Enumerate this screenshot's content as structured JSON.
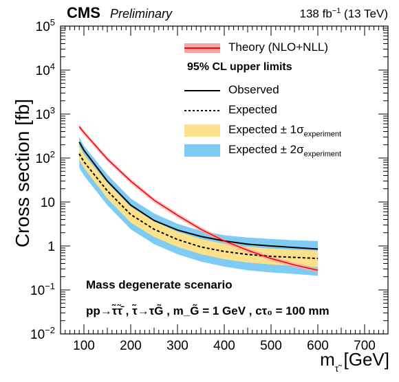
{
  "header": {
    "experiment": "CMS",
    "status": "Preliminary",
    "lumi_base": "138 fb",
    "lumi_exp": "−1",
    "lumi_tail": " (13 TeV)"
  },
  "axes": {
    "ylabel": "Cross section [fb]",
    "xlabel_main": "m",
    "xlabel_sub": "τ̃",
    "xlabel_unit": " [GeV]"
  },
  "legend": {
    "theory": "Theory (NLO+NLL)",
    "heading": "95% CL upper limits",
    "observed": "Observed",
    "expected": "Expected",
    "band1_main": "Expected ± 1σ",
    "band1_sub": "experiment",
    "band2_main": "Expected ± 2σ",
    "band2_sub": "experiment"
  },
  "annotations": {
    "scenario": "Mass degenerate scenario",
    "process": "pp→τ̃τ̃̄ ,  τ̃→τG̃ , m_G̃ = 1 GeV , cτ₀ = 100 mm"
  },
  "colors": {
    "theory": "#ff0000",
    "theory_band": "#f4a6a6",
    "band1": "#fde08a",
    "band2": "#7ecbf4",
    "lines": "#000000"
  },
  "chart_data": {
    "type": "line",
    "xlim": [
      50,
      750
    ],
    "ylim": [
      0.01,
      100000
    ],
    "yscale": "log",
    "x_ticks": [
      100,
      200,
      300,
      400,
      500,
      600,
      700
    ],
    "y_ticks": [
      {
        "v": 0.01,
        "m": "10",
        "e": "−2"
      },
      {
        "v": 0.1,
        "m": "10",
        "e": "−1"
      },
      {
        "v": 1,
        "m": "1",
        "e": ""
      },
      {
        "v": 10,
        "m": "10",
        "e": ""
      },
      {
        "v": 100,
        "m": "10",
        "e": "2"
      },
      {
        "v": 1000,
        "m": "10",
        "e": "3"
      },
      {
        "v": 10000,
        "m": "10",
        "e": "4"
      },
      {
        "v": 100000,
        "m": "10",
        "e": "5"
      }
    ],
    "x": [
      90,
      100,
      150,
      200,
      250,
      300,
      350,
      400,
      450,
      500,
      550,
      600
    ],
    "series": [
      {
        "name": "Observed",
        "values": [
          230,
          150,
          30,
          8.5,
          3.8,
          2.3,
          1.65,
          1.3,
          1.1,
          1.0,
          0.92,
          0.85
        ]
      },
      {
        "name": "Expected",
        "values": [
          125,
          82,
          18,
          5.2,
          2.4,
          1.4,
          0.95,
          0.75,
          0.64,
          0.58,
          0.55,
          0.52
        ]
      },
      {
        "name": "Theory (NLO+NLL)",
        "values": [
          520,
          380,
          95,
          30,
          11,
          5.0,
          2.4,
          1.3,
          0.8,
          0.52,
          0.37,
          0.28
        ]
      }
    ],
    "band_1sigma": {
      "lo": [
        90,
        60,
        12,
        3.4,
        1.6,
        0.95,
        0.65,
        0.5,
        0.42,
        0.38,
        0.35,
        0.33
      ],
      "hi": [
        190,
        120,
        27,
        7.8,
        3.6,
        2.1,
        1.45,
        1.12,
        0.96,
        0.87,
        0.82,
        0.78
      ]
    },
    "band_2sigma": {
      "lo": [
        60,
        40,
        8.5,
        2.4,
        1.1,
        0.65,
        0.44,
        0.34,
        0.28,
        0.25,
        0.23,
        0.21
      ],
      "hi": [
        300,
        190,
        42,
        12,
        5.5,
        3.2,
        2.2,
        1.75,
        1.55,
        1.45,
        1.35,
        1.3
      ]
    },
    "theory_band_frac": 0.12
  }
}
